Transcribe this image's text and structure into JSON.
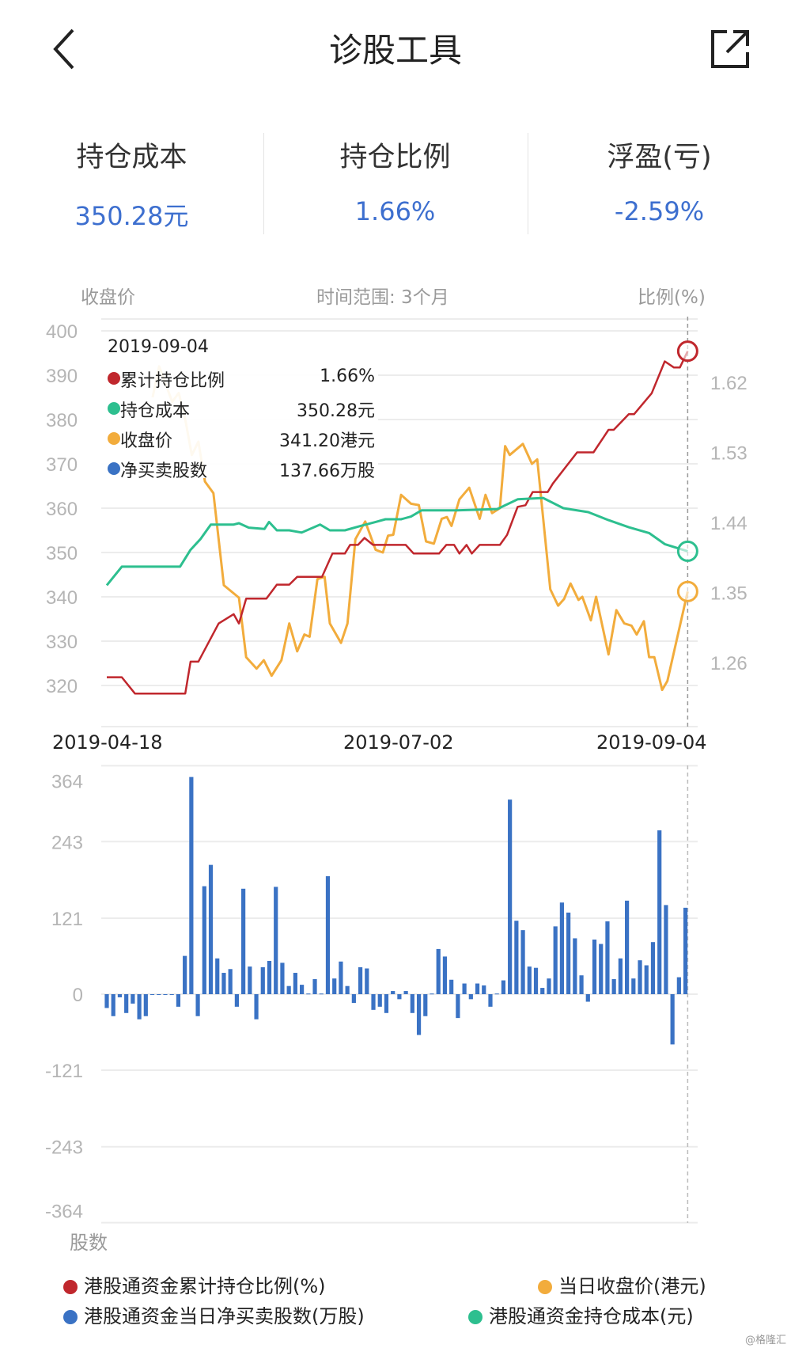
{
  "header": {
    "title": "诊股工具",
    "back_icon": "chevron-left-icon",
    "share_icon": "share-icon"
  },
  "stats": [
    {
      "label": "持仓成本",
      "value": "350.28元"
    },
    {
      "label": "持仓比例",
      "value": "1.66%"
    },
    {
      "label": "浮盈(亏)",
      "value": "-2.59%"
    }
  ],
  "colors": {
    "accent": "#3d6fcf",
    "ratio": "#c0272d",
    "cost": "#2dbf8f",
    "price": "#f2ac3c",
    "bars": "#3a72c4"
  },
  "chart_data": [
    {
      "type": "line",
      "left_axis_label": "收盘价",
      "center_label": "时间范围: 3个月",
      "right_axis_label": "比例(%)",
      "left_ticks": [
        "400",
        "390",
        "380",
        "370",
        "360",
        "350",
        "340",
        "330",
        "320"
      ],
      "right_ticks": [
        "1.62",
        "1.53",
        "1.44",
        "1.35",
        "1.26"
      ],
      "ylim_left": [
        320,
        400
      ],
      "x_tick_labels": [
        "2019-04-18",
        "2019-07-02",
        "2019-09-04"
      ],
      "x_count": 90,
      "tooltip": {
        "date": "2019-09-04",
        "rows": [
          {
            "name": "累计持仓比例",
            "value": "1.66%",
            "color": "#c0272d"
          },
          {
            "name": "持仓成本",
            "value": "350.28元",
            "color": "#2dbf8f"
          },
          {
            "name": "收盘价",
            "value": "341.20港元",
            "color": "#f2ac3c"
          },
          {
            "name": "净买卖股数",
            "value": "137.66万股",
            "color": "#3a72c4"
          }
        ]
      },
      "series": [
        {
          "name": "港股通资金累计持仓比例(%)",
          "axis": "right",
          "color": "#c0272d",
          "points": [
            [
              0,
              1.241
            ],
            [
              2.3,
              1.241
            ],
            [
              4.3,
              1.22
            ],
            [
              12,
              1.22
            ],
            [
              12.8,
              1.261
            ],
            [
              14,
              1.261
            ],
            [
              17.1,
              1.31
            ],
            [
              19.4,
              1.322
            ],
            [
              20.2,
              1.31
            ],
            [
              21.3,
              1.342
            ],
            [
              24.4,
              1.342
            ],
            [
              26,
              1.36
            ],
            [
              27.9,
              1.36
            ],
            [
              29.1,
              1.37
            ],
            [
              32.9,
              1.37
            ],
            [
              34.5,
              1.4
            ],
            [
              36.4,
              1.4
            ],
            [
              37.2,
              1.411
            ],
            [
              38.4,
              1.411
            ],
            [
              39.4,
              1.42
            ],
            [
              40.7,
              1.411
            ],
            [
              45.7,
              1.411
            ],
            [
              46.9,
              1.4
            ],
            [
              50.8,
              1.4
            ],
            [
              51.9,
              1.411
            ],
            [
              53.1,
              1.411
            ],
            [
              53.9,
              1.4
            ],
            [
              55,
              1.411
            ],
            [
              55.8,
              1.4
            ],
            [
              57,
              1.411
            ],
            [
              60.1,
              1.411
            ],
            [
              61.2,
              1.424
            ],
            [
              62.8,
              1.46
            ],
            [
              64,
              1.462
            ],
            [
              65.1,
              1.479
            ],
            [
              67.4,
              1.479
            ],
            [
              68.2,
              1.49
            ],
            [
              71.9,
              1.53
            ],
            [
              74.4,
              1.53
            ],
            [
              76.7,
              1.559
            ],
            [
              77.5,
              1.559
            ],
            [
              79.8,
              1.579
            ],
            [
              80.6,
              1.579
            ],
            [
              83.3,
              1.606
            ],
            [
              85.3,
              1.647
            ],
            [
              86.7,
              1.639
            ],
            [
              87.6,
              1.639
            ],
            [
              88.8,
              1.66
            ]
          ]
        },
        {
          "name": "港股通资金持仓成本(元)",
          "axis": "left",
          "color": "#2dbf8f",
          "points": [
            [
              0,
              342.6
            ],
            [
              2.3,
              346.8
            ],
            [
              11.2,
              346.8
            ],
            [
              12.8,
              350.6
            ],
            [
              14.3,
              353
            ],
            [
              15.9,
              356.3
            ],
            [
              19.4,
              356.3
            ],
            [
              20.2,
              356.6
            ],
            [
              21.7,
              355.6
            ],
            [
              24.1,
              355.3
            ],
            [
              24.8,
              356.9
            ],
            [
              26,
              355
            ],
            [
              27.9,
              355
            ],
            [
              29.8,
              354.5
            ],
            [
              32.6,
              356.3
            ],
            [
              34.1,
              355
            ],
            [
              36.4,
              355
            ],
            [
              38.8,
              356
            ],
            [
              41.1,
              356.9
            ],
            [
              42.6,
              357.5
            ],
            [
              45,
              357.5
            ],
            [
              46.5,
              358.1
            ],
            [
              48.1,
              359.5
            ],
            [
              53.5,
              359.5
            ],
            [
              59.7,
              359.8
            ],
            [
              62.8,
              362
            ],
            [
              66.7,
              362.3
            ],
            [
              69.8,
              360
            ],
            [
              73.6,
              359.1
            ],
            [
              76.7,
              357.3
            ],
            [
              79.8,
              355.7
            ],
            [
              82.9,
              354.4
            ],
            [
              85.3,
              351.9
            ],
            [
              88.8,
              350.28
            ]
          ]
        },
        {
          "name": "当日收盘价(港元)",
          "axis": "left",
          "color": "#f2ac3c",
          "points": [
            [
              7,
              385
            ],
            [
              8,
              392
            ],
            [
              9,
              388
            ],
            [
              10,
              384
            ],
            [
              11,
              386
            ],
            [
              12,
              380
            ],
            [
              13,
              372
            ],
            [
              14,
              375
            ],
            [
              15,
              366
            ],
            [
              16.3,
              363.4
            ],
            [
              17.9,
              342.6
            ],
            [
              20.2,
              339.8
            ],
            [
              21.3,
              326.4
            ],
            [
              22.9,
              323.8
            ],
            [
              24,
              325.7
            ],
            [
              25.2,
              322.2
            ],
            [
              26.7,
              325.7
            ],
            [
              27.9,
              334
            ],
            [
              29.1,
              327.7
            ],
            [
              30.2,
              331.5
            ],
            [
              31,
              331
            ],
            [
              32.2,
              344
            ],
            [
              33.3,
              344.5
            ],
            [
              34.1,
              334
            ],
            [
              35.8,
              329.6
            ],
            [
              36.8,
              334
            ],
            [
              38,
              353
            ],
            [
              39.5,
              357
            ],
            [
              41.1,
              350.6
            ],
            [
              42.2,
              350
            ],
            [
              43,
              353.8
            ],
            [
              43.8,
              354
            ],
            [
              45,
              363
            ],
            [
              46.5,
              361
            ],
            [
              47.7,
              360.7
            ],
            [
              48.8,
              352.5
            ],
            [
              50,
              352
            ],
            [
              51.2,
              357.6
            ],
            [
              52,
              358
            ],
            [
              52.7,
              356
            ],
            [
              53.9,
              362
            ],
            [
              55.4,
              364.6
            ],
            [
              57,
              357.6
            ],
            [
              57.9,
              363
            ],
            [
              58.9,
              358.9
            ],
            [
              60.1,
              360
            ],
            [
              60.9,
              374
            ],
            [
              61.6,
              372
            ],
            [
              63.6,
              374.5
            ],
            [
              65,
              370
            ],
            [
              65.8,
              371
            ],
            [
              67.8,
              341.7
            ],
            [
              69,
              338
            ],
            [
              69.9,
              339.5
            ],
            [
              70.9,
              343
            ],
            [
              72.1,
              339.3
            ],
            [
              72.7,
              340
            ],
            [
              74,
              334.7
            ],
            [
              74.8,
              340
            ],
            [
              76.7,
              327
            ],
            [
              77.9,
              337
            ],
            [
              79.1,
              334
            ],
            [
              80.2,
              333.5
            ],
            [
              81,
              331.5
            ],
            [
              82.1,
              334.5
            ],
            [
              82.9,
              326.4
            ],
            [
              83.7,
              326.4
            ],
            [
              84.9,
              319
            ],
            [
              85.7,
              321
            ],
            [
              88.8,
              341.2
            ]
          ]
        }
      ]
    },
    {
      "type": "bar",
      "ylabel": "股数",
      "y_ticks": [
        "364",
        "243",
        "121",
        "0",
        "-121",
        "-243",
        "-364"
      ],
      "ylim": [
        -364,
        364
      ],
      "series": [
        {
          "name": "港股通资金当日净买卖股数(万股)",
          "color": "#3a72c4",
          "values": [
            -22,
            -35,
            -5,
            -30,
            -15,
            -40,
            -35,
            0,
            0,
            0,
            0,
            -20,
            61,
            346,
            -35,
            172,
            206,
            57,
            34,
            40,
            -20,
            168,
            44,
            -40,
            43,
            53,
            171,
            50,
            13,
            34,
            15,
            1,
            24,
            1,
            188,
            25,
            52,
            13,
            -14,
            43,
            41,
            -25,
            -20,
            -30,
            5,
            -8,
            5,
            -30,
            -65,
            -35,
            1,
            72,
            60,
            23,
            -38,
            17,
            -8,
            17,
            14,
            -20,
            1,
            22,
            310,
            117,
            102,
            44,
            42,
            10,
            25,
            108,
            146,
            130,
            89,
            30,
            -12,
            87,
            80,
            116,
            24,
            57,
            149,
            25,
            54,
            46,
            83,
            261,
            142,
            -80,
            27,
            137.66
          ]
        }
      ]
    }
  ],
  "legend": [
    {
      "label": "港股通资金累计持仓比例(%)",
      "color": "#c0272d"
    },
    {
      "label": "当日收盘价(港元)",
      "color": "#f2ac3c"
    },
    {
      "label": "港股通资金当日净买卖股数(万股)",
      "color": "#3a72c4"
    },
    {
      "label": "港股通资金持仓成本(元)",
      "color": "#2dbf8f"
    }
  ],
  "watermark": "@格隆汇"
}
